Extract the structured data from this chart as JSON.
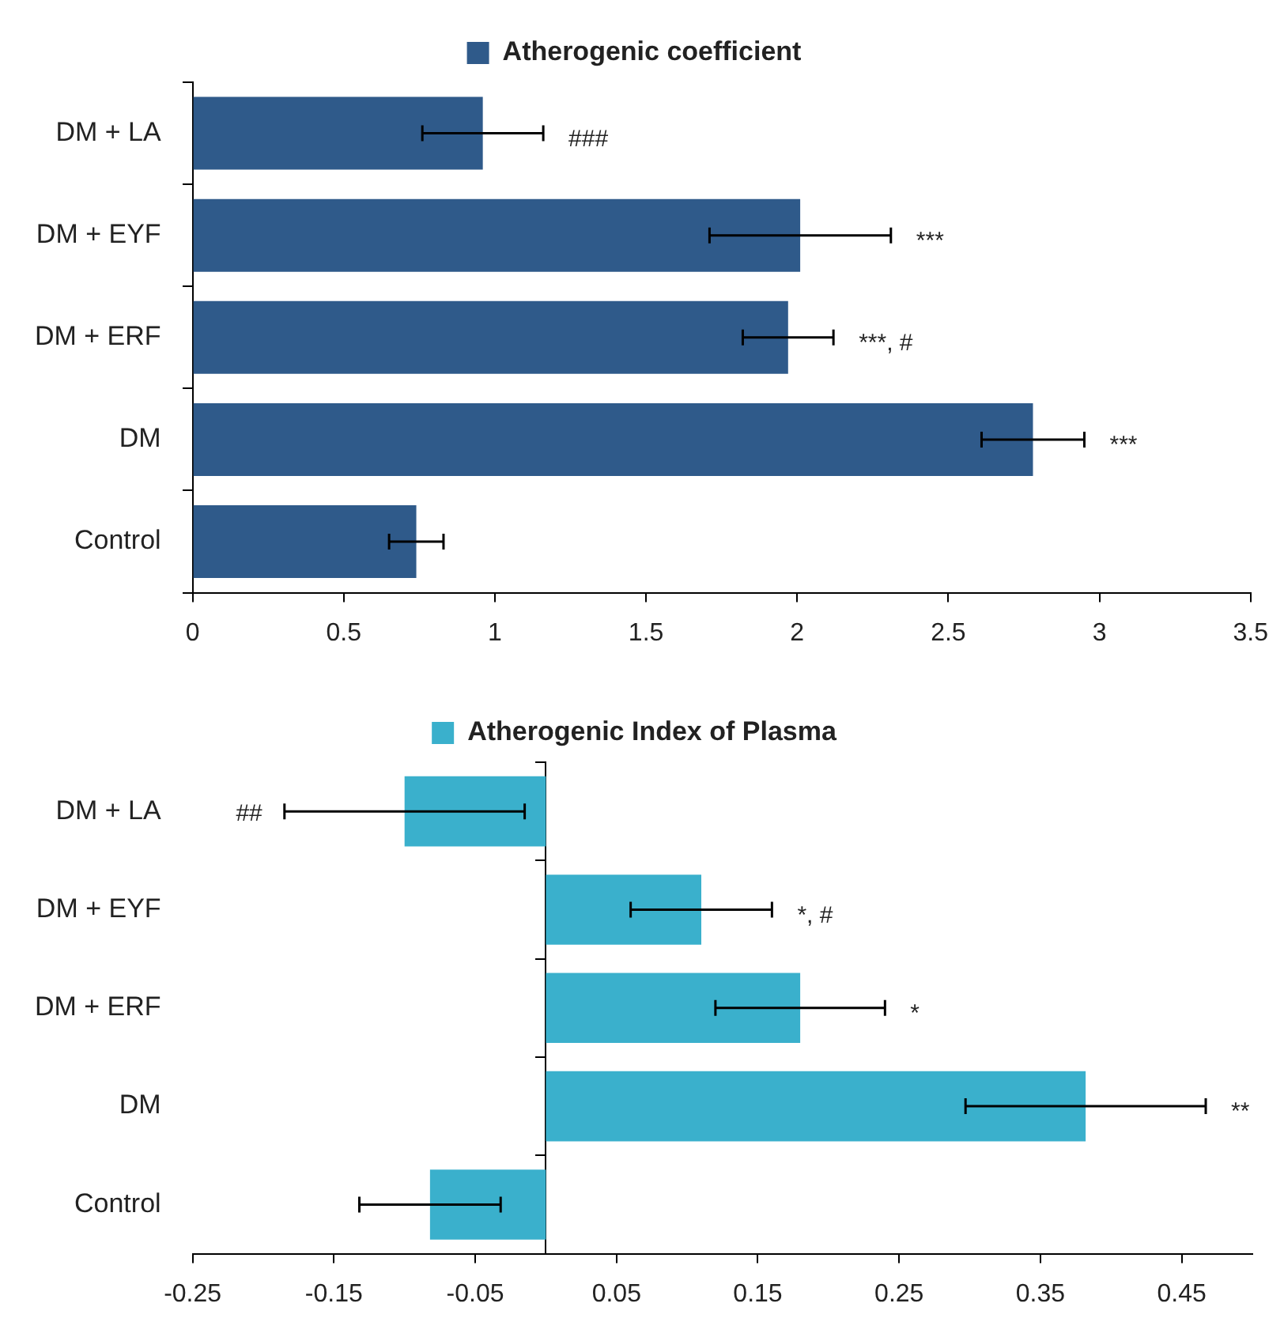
{
  "chart_data": [
    {
      "type": "bar",
      "orientation": "horizontal",
      "categories": [
        "DM + LA",
        "DM + EYF",
        "DM + ERF",
        "DM",
        "Control"
      ],
      "series": [
        {
          "name": "Atherogenic coefficient",
          "color": "#2f5a8a",
          "values": [
            0.96,
            2.01,
            1.97,
            2.78,
            0.74
          ],
          "errors": [
            0.2,
            0.3,
            0.15,
            0.17,
            0.09
          ]
        }
      ],
      "xlim": [
        0,
        3.5
      ],
      "xticks": [
        0,
        0.5,
        1,
        1.5,
        2,
        2.5,
        3,
        3.5
      ],
      "legend": "top",
      "annotations": [
        "###",
        "***",
        "***, #",
        "***"
      ]
    },
    {
      "type": "bar",
      "orientation": "horizontal",
      "categories": [
        "DM + LA",
        "DM + EYF",
        "DM + ERF",
        "DM",
        "Control"
      ],
      "series": [
        {
          "name": "Atherogenic Index of Plasma",
          "color": "#3ab0cc",
          "values": [
            -0.1,
            0.11,
            0.18,
            0.382,
            -0.082
          ],
          "errors": [
            0.085,
            0.05,
            0.06,
            0.085,
            0.05
          ]
        }
      ],
      "xlim": [
        -0.25,
        0.5
      ],
      "xticks": [
        -0.25,
        -0.15,
        -0.05,
        0.05,
        0.15,
        0.25,
        0.35,
        0.45
      ],
      "legend": "top",
      "annotations": [
        "##",
        "*, #",
        "*",
        "**"
      ]
    }
  ]
}
